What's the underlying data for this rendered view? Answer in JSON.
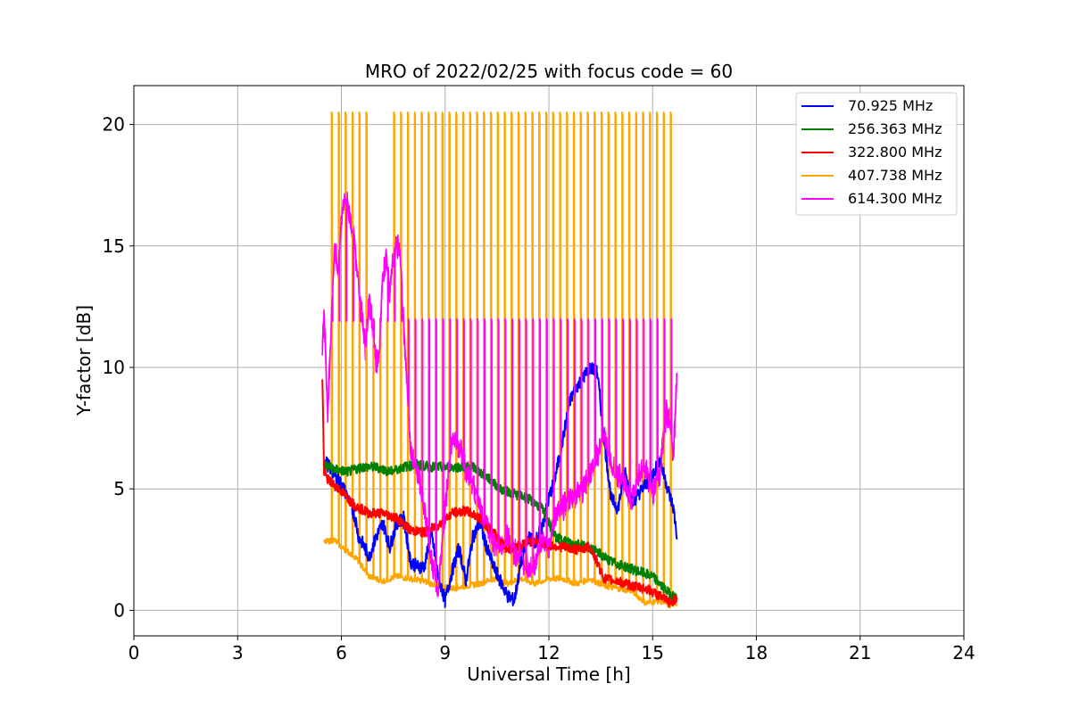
{
  "chart_data": {
    "type": "line",
    "title": "MRO of 2022/02/25 with focus code = 60",
    "xlabel": "Universal Time [h]",
    "ylabel": "Y-factor [dB]",
    "xlim": [
      0,
      24
    ],
    "ylim": [
      -1.05,
      21.6
    ],
    "xticks": [
      0,
      3,
      6,
      9,
      12,
      15,
      18,
      21,
      24
    ],
    "yticks": [
      0,
      5,
      10,
      15,
      20
    ],
    "grid": true,
    "legend_position": "top-right",
    "series": [
      {
        "name": "70.925 MHz",
        "color": "#0000ff",
        "x": [
          5.5,
          5.6,
          5.8,
          6.0,
          6.2,
          6.4,
          6.5,
          6.6,
          6.8,
          7.0,
          7.2,
          7.4,
          7.6,
          7.8,
          8.0,
          8.2,
          8.4,
          8.6,
          8.8,
          9.0,
          9.2,
          9.4,
          9.6,
          9.8,
          10.0,
          10.2,
          10.4,
          10.6,
          10.8,
          11.0,
          11.2,
          11.4,
          11.6,
          11.8,
          12.0,
          12.2,
          12.4,
          12.6,
          12.8,
          13.0,
          13.2,
          13.4,
          13.6,
          13.8,
          14.0,
          14.2,
          14.4,
          14.6,
          14.8,
          15.0,
          15.2,
          15.4,
          15.6,
          15.7
        ],
        "y": [
          6.2,
          6.0,
          5.6,
          5.2,
          4.6,
          3.8,
          3.0,
          2.8,
          2.2,
          3.0,
          3.6,
          2.6,
          3.6,
          3.8,
          2.0,
          1.8,
          1.8,
          3.2,
          1.4,
          0.4,
          1.6,
          2.6,
          1.2,
          3.0,
          3.6,
          2.6,
          1.8,
          1.2,
          0.6,
          0.4,
          2.0,
          3.0,
          2.8,
          3.4,
          4.6,
          5.6,
          7.0,
          8.6,
          9.2,
          9.6,
          10.0,
          9.8,
          7.0,
          4.6,
          4.2,
          5.8,
          4.4,
          4.8,
          5.2,
          5.6,
          6.2,
          5.2,
          4.2,
          3.1
        ]
      },
      {
        "name": "256.363 MHz",
        "color": "#008000",
        "x": [
          5.5,
          5.8,
          6.2,
          6.6,
          7.0,
          7.4,
          7.8,
          8.2,
          8.6,
          9.0,
          9.4,
          9.8,
          10.2,
          10.6,
          11.0,
          11.4,
          11.8,
          12.2,
          12.6,
          13.0,
          13.4,
          13.8,
          14.2,
          14.6,
          15.0,
          15.4,
          15.7
        ],
        "y": [
          6.0,
          5.8,
          5.7,
          5.9,
          5.9,
          5.7,
          5.9,
          6.0,
          5.9,
          5.9,
          5.9,
          5.9,
          5.5,
          5.0,
          4.8,
          4.6,
          4.2,
          3.0,
          2.8,
          2.7,
          2.4,
          2.0,
          1.8,
          1.6,
          1.4,
          0.8,
          0.5
        ]
      },
      {
        "name": "322.800 MHz",
        "color": "#ff0000",
        "x": [
          5.45,
          5.5,
          5.6,
          6.0,
          6.4,
          6.8,
          7.2,
          7.6,
          8.0,
          8.4,
          8.8,
          9.2,
          9.6,
          10.0,
          10.4,
          10.8,
          11.2,
          11.6,
          12.0,
          12.4,
          12.8,
          13.2,
          13.6,
          14.0,
          14.4,
          14.8,
          15.2,
          15.5,
          15.7
        ],
        "y": [
          9.6,
          5.7,
          5.4,
          4.9,
          4.3,
          4.0,
          4.0,
          3.8,
          3.3,
          3.2,
          3.5,
          4.0,
          4.1,
          3.8,
          3.2,
          2.5,
          2.7,
          2.9,
          2.7,
          2.6,
          2.5,
          2.6,
          1.3,
          1.2,
          1.0,
          0.9,
          0.6,
          0.3,
          0.5
        ]
      },
      {
        "name": "407.738 MHz",
        "color": "#ffa500",
        "baseline_x": [
          5.5,
          5.8,
          6.0,
          6.4,
          6.8,
          7.2,
          7.6,
          8.0,
          8.4,
          8.8,
          9.2,
          9.6,
          10.0,
          10.4,
          10.8,
          11.2,
          11.6,
          12.0,
          12.4,
          12.8,
          13.2,
          13.6,
          14.0,
          14.4,
          14.8,
          15.2,
          15.5,
          15.7
        ],
        "baseline_y": [
          2.8,
          2.9,
          2.6,
          2.2,
          1.4,
          1.2,
          1.4,
          1.3,
          1.2,
          1.0,
          0.9,
          1.0,
          1.1,
          1.3,
          1.1,
          1.3,
          1.1,
          1.3,
          1.3,
          1.1,
          1.3,
          1.0,
          0.9,
          0.8,
          0.3,
          0.4,
          0.2,
          0.3
        ],
        "spike_start": 5.72,
        "spike_period": 0.2,
        "spike_end": 15.55,
        "spike_peak": 20.5,
        "secondary_peaks": [
          {
            "range": [
              6.9,
              7.4
            ],
            "peak": 12.0
          }
        ]
      },
      {
        "name": "614.300 MHz",
        "color": "#ff00ff",
        "x": [
          5.45,
          5.5,
          5.6,
          5.7,
          5.8,
          5.9,
          6.0,
          6.1,
          6.2,
          6.3,
          6.4,
          6.5,
          6.6,
          6.7,
          6.8,
          6.9,
          7.0,
          7.1,
          7.2,
          7.3,
          7.4,
          7.5,
          7.6,
          7.7,
          7.8,
          7.9,
          8.0,
          8.2,
          8.4,
          8.6,
          8.8,
          9.0,
          9.2,
          9.4,
          9.6,
          9.8,
          10.0,
          10.2,
          10.4,
          10.6,
          10.8,
          11.0,
          11.2,
          11.4,
          11.6,
          11.8,
          12.0,
          12.2,
          12.4,
          12.6,
          12.8,
          13.0,
          13.2,
          13.4,
          13.6,
          13.8,
          14.0,
          14.2,
          14.4,
          14.6,
          14.8,
          15.0,
          15.2,
          15.4,
          15.5,
          15.6,
          15.7
        ],
        "y": [
          10.8,
          12.5,
          8.0,
          11.5,
          15.0,
          14.0,
          16.0,
          17.2,
          16.5,
          15.8,
          14.8,
          13.5,
          12.0,
          10.8,
          12.8,
          11.8,
          10.2,
          10.8,
          13.8,
          14.6,
          13.0,
          14.4,
          15.0,
          14.8,
          11.6,
          9.6,
          6.5,
          5.8,
          4.2,
          2.0,
          0.8,
          4.2,
          7.2,
          6.8,
          5.8,
          5.2,
          4.2,
          3.6,
          2.8,
          2.6,
          3.0,
          2.4,
          2.2,
          1.6,
          1.8,
          3.0,
          2.6,
          4.0,
          4.2,
          4.6,
          4.8,
          5.0,
          5.6,
          6.4,
          7.2,
          6.0,
          5.6,
          5.2,
          4.4,
          5.6,
          5.8,
          4.8,
          5.6,
          8.2,
          7.8,
          6.4,
          9.6
        ],
        "spike_start": 5.74,
        "spike_period": 0.2,
        "spike_end": 15.55,
        "spike_peak": 12.0
      }
    ]
  }
}
